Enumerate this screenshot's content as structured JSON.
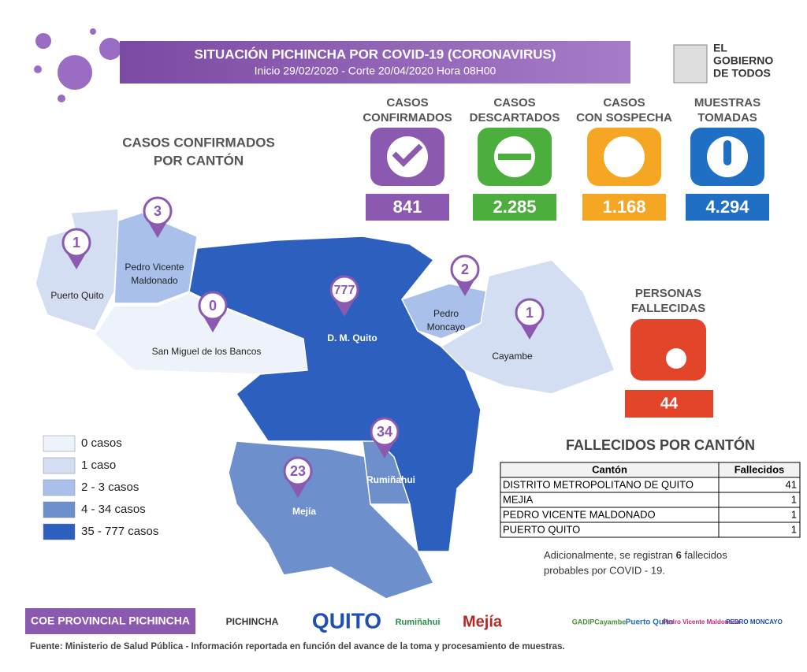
{
  "header": {
    "title": "SITUACIÓN PICHINCHA POR COVID-19 (CORONAVIRUS)",
    "subtitle": "Inicio 29/02/2020 - Corte 20/04/2020 Hora 08H00",
    "logo": [
      "EL",
      "GOBIERNO",
      "DE TODOS"
    ]
  },
  "stats": [
    {
      "label": [
        "CASOS",
        "CONFIRMADOS"
      ],
      "value": "841",
      "color": "#8b5ab0"
    },
    {
      "label": [
        "CASOS",
        "DESCARTADOS"
      ],
      "value": "2.285",
      "color": "#4cae3c"
    },
    {
      "label": [
        "CASOS",
        "CON SOSPECHA"
      ],
      "value": "1.168",
      "color": "#f5a623"
    },
    {
      "label": [
        "MUESTRAS",
        "TOMADAS"
      ],
      "value": "4.294",
      "color": "#1f6fc4"
    }
  ],
  "deaths": {
    "label": [
      "PERSONAS",
      "FALLECIDAS"
    ],
    "value": "44",
    "color": "#e3452b"
  },
  "map": {
    "title": [
      "CASOS CONFIRMADOS",
      "POR CANTÓN"
    ],
    "cantons": [
      {
        "name": "Puerto Quito",
        "cases": "1"
      },
      {
        "name": [
          "Pedro Vicente",
          "Maldonado"
        ],
        "cases": "3"
      },
      {
        "name": "San Miguel de los Bancos",
        "cases": "0"
      },
      {
        "name": "D. M. Quito",
        "cases": "777"
      },
      {
        "name": [
          "Pedro",
          "Moncayo"
        ],
        "cases": "2"
      },
      {
        "name": "Cayambe",
        "cases": "1"
      },
      {
        "name": "Rumiñahui",
        "cases": "34"
      },
      {
        "name": "Mejía",
        "cases": "23"
      }
    ],
    "legend": [
      {
        "label": "0 casos",
        "color": "#eef2fa"
      },
      {
        "label": "1 caso",
        "color": "#d3def2"
      },
      {
        "label": "2 - 3 casos",
        "color": "#a9c1ea"
      },
      {
        "label": "4 - 34 casos",
        "color": "#6d8fcb"
      },
      {
        "label": "35 - 777 casos",
        "color": "#2d5fbf"
      }
    ]
  },
  "table": {
    "title": "FALLECIDOS POR CANTÓN",
    "columns": [
      "Cantón",
      "Fallecidos"
    ],
    "rows": [
      [
        "DISTRITO METROPOLITANO DE QUITO",
        "41"
      ],
      [
        "MEJIA",
        "1"
      ],
      [
        "PEDRO VICENTE MALDONADO",
        "1"
      ],
      [
        "PUERTO QUITO",
        "1"
      ]
    ]
  },
  "note": {
    "line1": [
      "Adicionalmente, se registran ",
      "6",
      " fallecidos"
    ],
    "line2": "probables por COVID - 19."
  },
  "footer": {
    "coe": "COE PROVINCIAL PICHINCHA",
    "logos": [
      "PICHINCHA",
      "QUITO",
      "Rumiñahui",
      "Mejía",
      "GADIPCayambe",
      "Puerto Quito",
      "Pedro Vicente Maldonado",
      "PEDRO MONCAYO"
    ],
    "source": "Fuente: Ministerio de Salud Pública - Información reportada en función del avance de la toma y procesamiento de muestras."
  }
}
